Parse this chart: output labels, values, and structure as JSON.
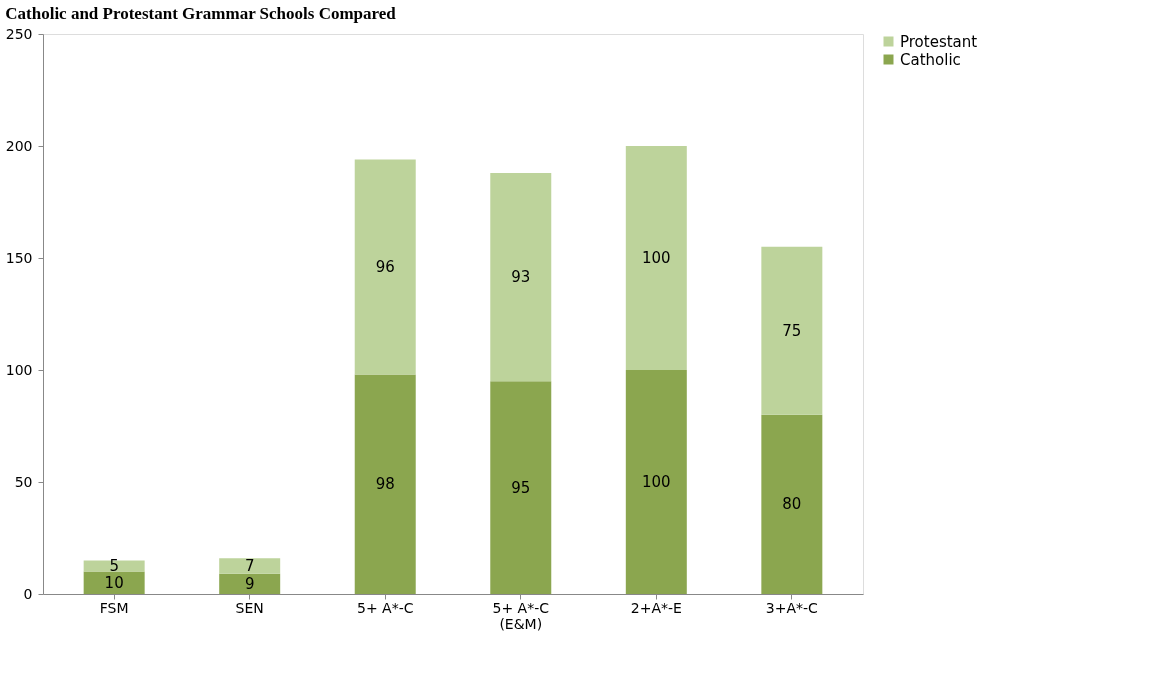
{
  "chart_data": {
    "type": "bar",
    "title": "Catholic and Protestant Grammar Schools Compared",
    "categories": [
      "FSM",
      "SEN",
      "5+ A*-C",
      "5+ A*-C\n(E&M)",
      "2+A*-E",
      "3+A*-C"
    ],
    "stacked": true,
    "data_labels": true,
    "legend": "right",
    "grid": false,
    "ylim": [
      0,
      250
    ],
    "yticks": [
      0,
      50,
      100,
      150,
      200,
      250
    ],
    "series": [
      {
        "name": "Catholic",
        "color": "#8ba64f",
        "values": [
          10,
          9,
          98,
          95,
          100,
          80
        ]
      },
      {
        "name": "Protestant",
        "color": "#bdd39b",
        "values": [
          5,
          7,
          96,
          93,
          100,
          75
        ]
      }
    ]
  }
}
